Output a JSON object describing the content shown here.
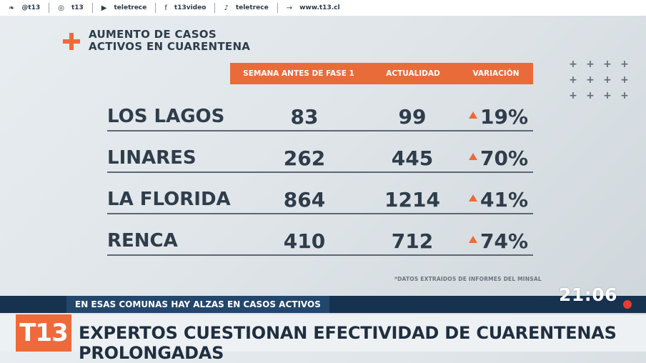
{
  "social": [
    {
      "icon": "twitter-icon",
      "glyph": "❧",
      "label": "@t13"
    },
    {
      "icon": "instagram-icon",
      "glyph": "◎",
      "label": "t13"
    },
    {
      "icon": "youtube-icon",
      "glyph": "▶",
      "label": "teletrece"
    },
    {
      "icon": "facebook-icon",
      "glyph": "f",
      "label": "t13video"
    },
    {
      "icon": "tiktok-icon",
      "glyph": "♪",
      "label": "teletrece"
    },
    {
      "icon": "web-icon",
      "glyph": "→",
      "label": "www.t13.cl"
    }
  ],
  "header": {
    "title": "AUMENTO DE CASOS ACTIVOS EN CUARENTENA"
  },
  "table": {
    "columns": [
      "SEMANA ANTES DE FASE 1",
      "ACTUALIDAD",
      "VARIACIÓN"
    ],
    "rows": [
      {
        "name": "LOS LAGOS",
        "before": "83",
        "now": "99",
        "variation": "19%"
      },
      {
        "name": "LINARES",
        "before": "262",
        "now": "445",
        "variation": "70%"
      },
      {
        "name": "LA FLORIDA",
        "before": "864",
        "now": "1214",
        "variation": "41%"
      },
      {
        "name": "RENCA",
        "before": "410",
        "now": "712",
        "variation": "74%"
      }
    ]
  },
  "footnote": "*DATOS EXTRAIDOS DE INFORMES DEL MINSAL",
  "ticker": {
    "clock": "21:06",
    "subheadline": "EN ESAS COMUNAS HAY ALZAS EN CASOS ACTIVOS",
    "headline": "EXPERTOS CUESTIONAN EFECTIVIDAD DE CUARENTENAS PROLONGADAS",
    "logo": "T13"
  },
  "colors": {
    "accent": "#ea6b3a",
    "navy": "#16324f",
    "text": "#2f3d4b"
  }
}
